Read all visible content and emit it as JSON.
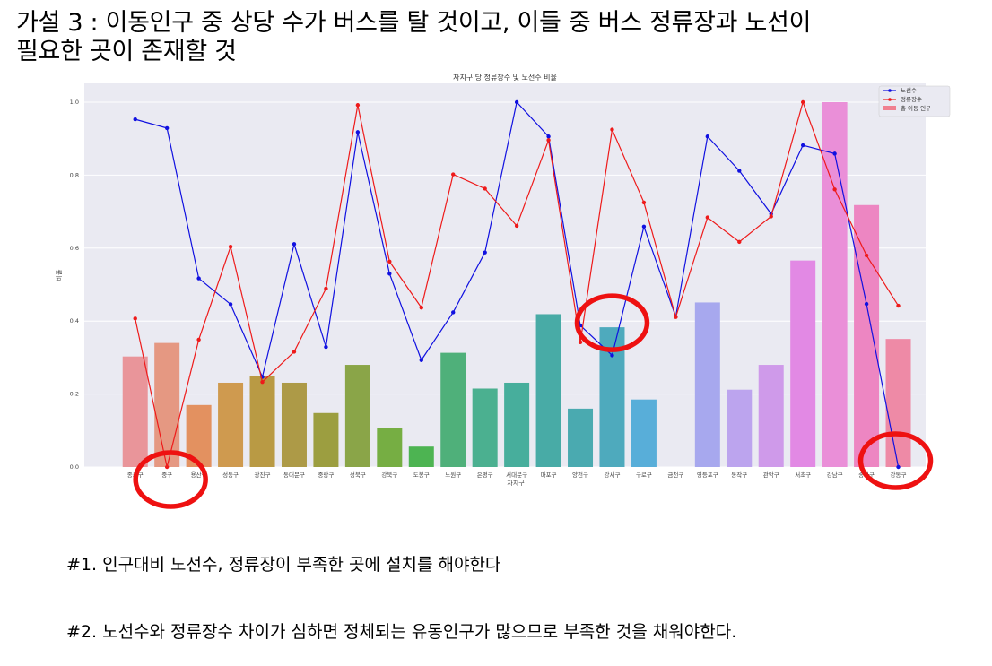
{
  "heading": "가설 3 : 이동인구 중 상당 수가 버스를 탈 것이고, 이들 중 버스 정류장과 노선이\n필요한 곳이 존재할 것",
  "notes": [
    "#1. 인구대비 노선수, 정류장이 부족한 곳에 설치를 해야한다",
    "#2. 노선수와 정류장수 차이가 심하면 정체되는 유동인구가 많으므로 부족한 것을 채워야한다."
  ],
  "highlight_color": "#ee1111",
  "chart_data": {
    "type": "bar",
    "title": "자치구 당 정류장수 및 노선수 비율",
    "xlabel": "자치구",
    "ylabel": "비율",
    "ylim": [
      0,
      1.05
    ],
    "yticks": [
      "0.0",
      "0.2",
      "0.4",
      "0.6",
      "0.8",
      "1.0"
    ],
    "grid": true,
    "legend_position": "top-right",
    "categories": [
      "종로구",
      "중구",
      "용산구",
      "성동구",
      "광진구",
      "동대문구",
      "중랑구",
      "성북구",
      "강북구",
      "도봉구",
      "노원구",
      "은평구",
      "서대문구",
      "마포구",
      "양천구",
      "강서구",
      "구로구",
      "금천구",
      "영등포구",
      "동작구",
      "관악구",
      "서초구",
      "강남구",
      "송파구",
      "강동구"
    ],
    "series": [
      {
        "name": "노선수",
        "type": "line",
        "color": "#1010e0",
        "values": [
          0.953,
          0.929,
          0.517,
          0.446,
          0.247,
          0.611,
          0.329,
          0.918,
          0.53,
          0.293,
          0.424,
          0.588,
          1.0,
          0.906,
          0.388,
          0.306,
          0.659,
          0.412,
          0.906,
          0.812,
          0.694,
          0.882,
          0.859,
          0.447,
          0.0
        ]
      },
      {
        "name": "정류장수",
        "type": "line",
        "color": "#ee1a1a",
        "values": [
          0.407,
          0.0,
          0.349,
          0.604,
          0.233,
          0.316,
          0.489,
          0.992,
          0.563,
          0.437,
          0.802,
          0.763,
          0.661,
          0.896,
          0.342,
          0.925,
          0.725,
          0.411,
          0.684,
          0.617,
          0.687,
          1.0,
          0.761,
          0.58,
          0.442
        ]
      },
      {
        "name": "총 이동 인구",
        "type": "bar",
        "color": "#f08090",
        "values": [
          0.303,
          0.34,
          0.17,
          0.231,
          0.25,
          0.231,
          0.148,
          0.28,
          0.107,
          0.056,
          0.313,
          0.215,
          0.231,
          0.419,
          0.16,
          0.383,
          0.185,
          0.0,
          0.451,
          0.212,
          0.28,
          0.566,
          1.0,
          0.718,
          0.351
        ]
      }
    ],
    "bar_colors": [
      "#e9959a",
      "#e59882",
      "#e39160",
      "#cf9a4f",
      "#b99a44",
      "#ad9a47",
      "#9c9e40",
      "#8aa548",
      "#76ae43",
      "#4db452",
      "#4fb07a",
      "#4bb090",
      "#47ae9c",
      "#48aba6",
      "#4aaab0",
      "#4eaabd",
      "#58aed9",
      "#8ea6e8",
      "#a7a8ee",
      "#bca4ee",
      "#cf9aea",
      "#e289e4",
      "#ea8fd8",
      "#ed86c2",
      "#ee8aa6"
    ],
    "highlights": [
      "중구",
      "강서구",
      "강동구"
    ]
  }
}
